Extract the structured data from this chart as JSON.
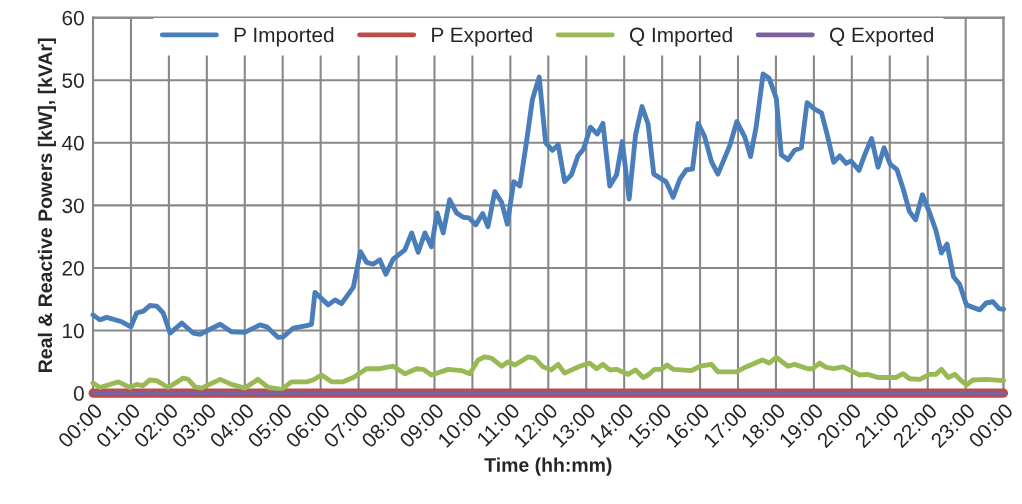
{
  "chart_data": {
    "type": "line",
    "xlabel": "Time (hh:mm)",
    "ylabel": "Real & Reactive Powers [kW], [kVAr]",
    "xlim": [
      0,
      24
    ],
    "ylim": [
      0,
      60
    ],
    "yticks": [
      0,
      10,
      20,
      30,
      40,
      50,
      60
    ],
    "xticks": [
      {
        "value": 0,
        "label": "00:00"
      },
      {
        "value": 1,
        "label": "01:00"
      },
      {
        "value": 2,
        "label": "02:00"
      },
      {
        "value": 3,
        "label": "03:00"
      },
      {
        "value": 4,
        "label": "04:00"
      },
      {
        "value": 5,
        "label": "05:00"
      },
      {
        "value": 6,
        "label": "06:00"
      },
      {
        "value": 7,
        "label": "07:00"
      },
      {
        "value": 8,
        "label": "08:00"
      },
      {
        "value": 9,
        "label": "09:00"
      },
      {
        "value": 10,
        "label": "10:00"
      },
      {
        "value": 11,
        "label": "11:00"
      },
      {
        "value": 12,
        "label": "12:00"
      },
      {
        "value": 13,
        "label": "13:00"
      },
      {
        "value": 14,
        "label": "14:00"
      },
      {
        "value": 15,
        "label": "15:00"
      },
      {
        "value": 16,
        "label": "16:00"
      },
      {
        "value": 17,
        "label": "17:00"
      },
      {
        "value": 18,
        "label": "18:00"
      },
      {
        "value": 19,
        "label": "19:00"
      },
      {
        "value": 20,
        "label": "20:00"
      },
      {
        "value": 21,
        "label": "21:00"
      },
      {
        "value": 22,
        "label": "22:00"
      },
      {
        "value": 23,
        "label": "23:00"
      },
      {
        "value": 24,
        "label": "00:00"
      }
    ],
    "grid": true,
    "legend": "top",
    "marker": "none",
    "line_style": "solid",
    "series": [
      {
        "name": "P Imported",
        "color": "#4a7ebb",
        "x": [
          0,
          0.18,
          0.36,
          0.76,
          1.0,
          1.15,
          1.33,
          1.5,
          1.68,
          1.85,
          2.03,
          2.34,
          2.64,
          2.82,
          3.35,
          3.65,
          4.0,
          4.4,
          4.58,
          4.88,
          5.01,
          5.28,
          5.63,
          5.76,
          5.85,
          6.2,
          6.38,
          6.55,
          6.86,
          7.05,
          7.21,
          7.38,
          7.56,
          7.72,
          7.91,
          8.22,
          8.4,
          8.57,
          8.75,
          8.92,
          9.07,
          9.23,
          9.4,
          9.58,
          9.76,
          9.91,
          10.09,
          10.27,
          10.41,
          10.59,
          10.77,
          10.92,
          11.09,
          11.25,
          11.42,
          11.58,
          11.76,
          11.93,
          12.11,
          12.26,
          12.43,
          12.61,
          12.78,
          12.93,
          13.11,
          13.29,
          13.44,
          13.62,
          13.8,
          13.95,
          14.13,
          14.3,
          14.47,
          14.63,
          14.78,
          15.1,
          15.29,
          15.46,
          15.64,
          15.8,
          15.95,
          16.12,
          16.3,
          16.47,
          16.78,
          16.97,
          17.18,
          17.33,
          17.48,
          17.66,
          17.82,
          18.01,
          18.14,
          18.32,
          18.49,
          18.67,
          18.82,
          19.02,
          19.2,
          19.35,
          19.52,
          19.68,
          19.85,
          19.98,
          20.19,
          20.34,
          20.52,
          20.69,
          20.85,
          21.01,
          21.19,
          21.35,
          21.52,
          21.68,
          21.86,
          22.05,
          22.21,
          22.36,
          22.51,
          22.68,
          22.84,
          23.02,
          23.19,
          23.37,
          23.54,
          23.72,
          23.88,
          24.0
        ],
        "values": [
          12.5,
          11.7,
          12.1,
          11.4,
          10.6,
          12.8,
          13.1,
          14.0,
          13.9,
          12.8,
          9.6,
          11.2,
          9.6,
          9.4,
          11.0,
          9.8,
          9.7,
          10.9,
          10.6,
          8.9,
          9.0,
          10.4,
          10.8,
          11.0,
          16.1,
          14.1,
          14.9,
          14.3,
          16.9,
          22.6,
          20.9,
          20.6,
          21.3,
          19.0,
          21.4,
          22.9,
          25.6,
          22.5,
          25.6,
          23.4,
          28.8,
          25.6,
          30.9,
          28.8,
          28.1,
          28.0,
          26.9,
          28.7,
          26.6,
          32.2,
          30.5,
          27.0,
          33.8,
          33.1,
          39.9,
          46.9,
          50.5,
          40.0,
          38.8,
          39.7,
          33.8,
          34.9,
          37.9,
          39.0,
          42.5,
          41.4,
          43.1,
          33.1,
          34.9,
          40.2,
          31.0,
          41.3,
          45.8,
          43.0,
          35.0,
          33.8,
          31.3,
          34.1,
          35.7,
          35.8,
          43.1,
          41.0,
          37.0,
          35.0,
          39.5,
          43.4,
          40.9,
          37.8,
          42.6,
          51.0,
          50.3,
          47.1,
          38.1,
          37.3,
          38.8,
          39.2,
          46.4,
          45.4,
          44.8,
          41.3,
          36.9,
          37.9,
          36.7,
          37.1,
          35.6,
          38.1,
          40.7,
          36.1,
          39.2,
          36.6,
          35.7,
          32.7,
          29.0,
          27.7,
          31.7,
          28.8,
          26.1,
          22.4,
          23.8,
          18.6,
          17.4,
          14.1,
          13.7,
          13.3,
          14.4,
          14.6,
          13.5,
          13.4
        ]
      },
      {
        "name": "P Exported",
        "color": "#be4b48",
        "x": [
          0,
          24
        ],
        "values": [
          0,
          0
        ]
      },
      {
        "name": "Q Imported",
        "color": "#98b954",
        "x": [
          0,
          0.18,
          0.67,
          0.97,
          1.15,
          1.32,
          1.5,
          1.68,
          1.98,
          2.38,
          2.51,
          2.69,
          2.86,
          3.35,
          3.65,
          4.0,
          4.35,
          4.62,
          4.97,
          5.23,
          5.63,
          5.8,
          6.02,
          6.29,
          6.59,
          6.86,
          7.21,
          7.56,
          7.91,
          8.22,
          8.53,
          8.7,
          8.92,
          9.36,
          9.71,
          9.93,
          10.15,
          10.33,
          10.5,
          10.77,
          10.94,
          11.12,
          11.47,
          11.64,
          11.86,
          12.08,
          12.26,
          12.43,
          12.83,
          13.09,
          13.27,
          13.44,
          13.62,
          13.8,
          14.1,
          14.3,
          14.5,
          14.63,
          14.8,
          14.98,
          15.13,
          15.29,
          15.77,
          16.0,
          16.3,
          16.47,
          16.96,
          17.18,
          17.64,
          17.82,
          18.01,
          18.32,
          18.49,
          18.84,
          18.97,
          19.15,
          19.33,
          19.52,
          19.77,
          20.21,
          20.42,
          20.69,
          21.17,
          21.35,
          21.52,
          21.79,
          22.05,
          22.21,
          22.36,
          22.54,
          22.71,
          22.88,
          23.03,
          23.19,
          23.54,
          24.0
        ],
        "values": [
          1.6,
          0.9,
          1.8,
          0.9,
          1.4,
          1.2,
          2.1,
          2.0,
          0.9,
          2.4,
          2.2,
          1.0,
          0.8,
          2.2,
          1.4,
          0.8,
          2.2,
          0.9,
          0.6,
          1.8,
          1.8,
          2.1,
          2.9,
          1.8,
          1.8,
          2.5,
          3.9,
          3.9,
          4.3,
          3.1,
          3.9,
          3.8,
          2.9,
          3.8,
          3.6,
          3.1,
          5.3,
          5.8,
          5.6,
          4.3,
          5.0,
          4.5,
          5.8,
          5.6,
          4.2,
          3.7,
          4.6,
          3.2,
          4.3,
          4.8,
          3.9,
          4.6,
          3.7,
          3.8,
          3.0,
          3.7,
          2.5,
          2.9,
          3.8,
          3.8,
          4.5,
          3.8,
          3.6,
          4.3,
          4.6,
          3.4,
          3.4,
          4.1,
          5.3,
          4.8,
          5.7,
          4.3,
          4.6,
          3.9,
          3.9,
          4.8,
          4.1,
          3.9,
          4.2,
          2.9,
          3.0,
          2.5,
          2.5,
          3.1,
          2.3,
          2.2,
          3.0,
          3.0,
          3.8,
          2.5,
          3.0,
          2.0,
          1.3,
          2.1,
          2.2,
          2.0
        ]
      },
      {
        "name": "Q Exported",
        "color": "#7d60a0",
        "x": [
          0,
          24
        ],
        "values": [
          0,
          0
        ]
      }
    ]
  }
}
